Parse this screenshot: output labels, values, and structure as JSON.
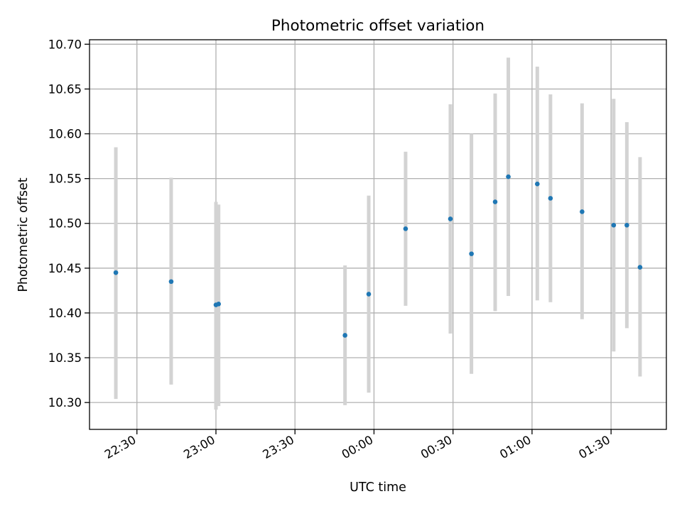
{
  "chart_data": {
    "type": "scatter",
    "title": "Photometric offset variation",
    "xlabel": "UTC time",
    "ylabel": "Photometric offset",
    "x_ticks": [
      "22:30",
      "23:00",
      "23:30",
      "00:00",
      "00:30",
      "01:00",
      "01:30"
    ],
    "y_ticks": [
      "10.30",
      "10.35",
      "10.40",
      "10.45",
      "10.50",
      "10.55",
      "10.60",
      "10.65",
      "10.70"
    ],
    "xlim": [
      "22:12",
      "01:51"
    ],
    "ylim": [
      10.27,
      10.705
    ],
    "grid": true,
    "series": [
      {
        "color": "#1f77b4",
        "errorbar_color": "#d3d3d3",
        "points": [
          {
            "x": "22:22",
            "y": 10.445,
            "lo": 10.304,
            "hi": 10.585
          },
          {
            "x": "22:43",
            "y": 10.435,
            "lo": 10.32,
            "hi": 10.551
          },
          {
            "x": "23:00",
            "y": 10.409,
            "lo": 10.292,
            "hi": 10.524
          },
          {
            "x": "23:01",
            "y": 10.41,
            "lo": 10.296,
            "hi": 10.521
          },
          {
            "x": "23:49",
            "y": 10.375,
            "lo": 10.297,
            "hi": 10.453
          },
          {
            "x": "23:58",
            "y": 10.421,
            "lo": 10.311,
            "hi": 10.531
          },
          {
            "x": "00:12",
            "y": 10.494,
            "lo": 10.408,
            "hi": 10.58
          },
          {
            "x": "00:29",
            "y": 10.505,
            "lo": 10.377,
            "hi": 10.633
          },
          {
            "x": "00:37",
            "y": 10.466,
            "lo": 10.332,
            "hi": 10.6
          },
          {
            "x": "00:46",
            "y": 10.524,
            "lo": 10.402,
            "hi": 10.645
          },
          {
            "x": "00:51",
            "y": 10.552,
            "lo": 10.419,
            "hi": 10.685
          },
          {
            "x": "01:02",
            "y": 10.544,
            "lo": 10.414,
            "hi": 10.675
          },
          {
            "x": "01:07",
            "y": 10.528,
            "lo": 10.412,
            "hi": 10.644
          },
          {
            "x": "01:19",
            "y": 10.513,
            "lo": 10.393,
            "hi": 10.634
          },
          {
            "x": "01:31",
            "y": 10.498,
            "lo": 10.357,
            "hi": 10.639
          },
          {
            "x": "01:36",
            "y": 10.498,
            "lo": 10.383,
            "hi": 10.613
          },
          {
            "x": "01:41",
            "y": 10.451,
            "lo": 10.329,
            "hi": 10.574
          }
        ]
      }
    ]
  }
}
